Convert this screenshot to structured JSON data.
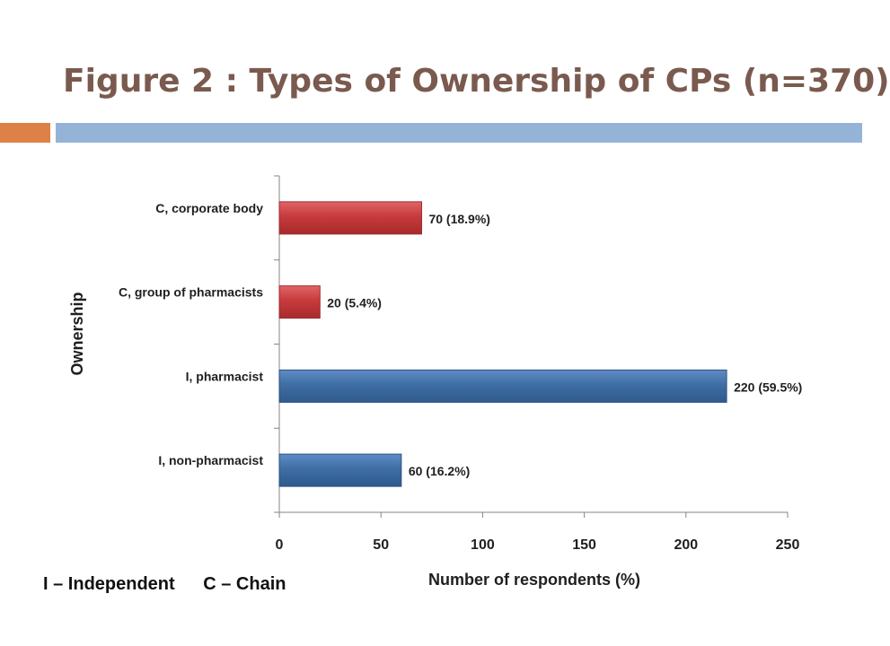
{
  "slide": {
    "title": "Figure 2 : Types of Ownership of CPs (n=370)",
    "note_independent": "I – Independent",
    "note_chain": "C – Chain"
  },
  "colors": {
    "title": "#7a5a4f",
    "accent_orange": "#dd8146",
    "accent_blue": "#95b3d7",
    "chain": "#c0393b",
    "independent": "#3f6ea5"
  },
  "chart_data": {
    "type": "bar",
    "orientation": "horizontal",
    "xlabel": "Number of respondents (%)",
    "ylabel": "Ownership",
    "xlim": [
      0,
      250
    ],
    "xticks": [
      0,
      50,
      100,
      150,
      200,
      250
    ],
    "grid": false,
    "categories": [
      "C, corporate body",
      "C, group of pharmacists",
      "I, pharmacist",
      "I, non-pharmacist"
    ],
    "values": [
      70,
      20,
      220,
      60
    ],
    "data_labels": [
      "70 (18.9%)",
      "20 (5.4%)",
      "220 (59.5%)",
      "60 (16.2%)"
    ],
    "bar_colors": [
      "#c0393b",
      "#c0393b",
      "#3f6ea5",
      "#3f6ea5"
    ]
  }
}
